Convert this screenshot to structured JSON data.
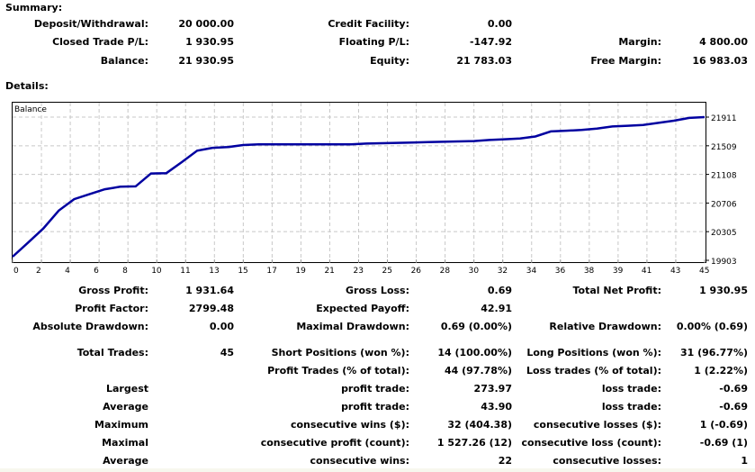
{
  "summary": {
    "title": "Summary:",
    "rows": [
      [
        {
          "label": "Deposit/Withdrawal:",
          "value": "20 000.00"
        },
        {
          "label": "Credit Facility:",
          "value": "0.00"
        },
        {
          "label": "",
          "value": ""
        }
      ],
      [
        {
          "label": "Closed Trade P/L:",
          "value": "1 930.95"
        },
        {
          "label": "Floating P/L:",
          "value": "-147.92"
        },
        {
          "label": "Margin:",
          "value": "4 800.00"
        }
      ],
      [
        {
          "label": "Balance:",
          "value": "21 930.95"
        },
        {
          "label": "Equity:",
          "value": "21 783.03"
        },
        {
          "label": "Free Margin:",
          "value": "16 983.03"
        }
      ]
    ]
  },
  "details": {
    "title": "Details:",
    "rows": [
      [
        {
          "label": "Gross Profit:",
          "value": "1 931.64"
        },
        {
          "label": "Gross Loss:",
          "value": "0.69"
        },
        {
          "label": "Total Net Profit:",
          "value": "1 930.95"
        }
      ],
      [
        {
          "label": "Profit Factor:",
          "value": "2799.48"
        },
        {
          "label": "Expected Payoff:",
          "value": "42.91"
        },
        {
          "label": "",
          "value": ""
        }
      ],
      [
        {
          "label": "Absolute Drawdown:",
          "value": "0.00"
        },
        {
          "label": "Maximal Drawdown:",
          "value": "0.69 (0.00%)"
        },
        {
          "label": "Relative Drawdown:",
          "value": "0.00% (0.69)"
        }
      ],
      [
        {
          "label": "Total Trades:",
          "value": "45"
        },
        {
          "label": "Short Positions (won %):",
          "value": "14 (100.00%)"
        },
        {
          "label": "Long Positions (won %):",
          "value": "31 (96.77%)"
        }
      ],
      [
        {
          "label": "",
          "value": ""
        },
        {
          "label": "Profit Trades (% of total):",
          "value": "44 (97.78%)"
        },
        {
          "label": "Loss trades (% of total):",
          "value": "1 (2.22%)"
        }
      ],
      [
        {
          "label": "Largest",
          "value": ""
        },
        {
          "label": "profit trade:",
          "value": "273.97"
        },
        {
          "label": "loss trade:",
          "value": "-0.69"
        }
      ],
      [
        {
          "label": "Average",
          "value": ""
        },
        {
          "label": "profit trade:",
          "value": "43.90"
        },
        {
          "label": "loss trade:",
          "value": "-0.69"
        }
      ],
      [
        {
          "label": "Maximum",
          "value": ""
        },
        {
          "label": "consecutive wins ($):",
          "value": "32 (404.38)"
        },
        {
          "label": "consecutive losses ($):",
          "value": "1 (-0.69)"
        }
      ],
      [
        {
          "label": "Maximal",
          "value": ""
        },
        {
          "label": "consecutive profit (count):",
          "value": "1 527.26 (12)"
        },
        {
          "label": "consecutive loss (count):",
          "value": "-0.69 (1)"
        }
      ],
      [
        {
          "label": "Average",
          "value": ""
        },
        {
          "label": "consecutive wins:",
          "value": "22"
        },
        {
          "label": "consecutive losses:",
          "value": "1"
        }
      ]
    ]
  },
  "colors": {
    "line": "#0000a0",
    "grid": "#c8c8c8",
    "frame": "#000000"
  },
  "chart_data": {
    "type": "line",
    "title": "Balance",
    "xlabel": "",
    "ylabel": "",
    "x_tick_labels": [
      "0",
      "2",
      "4",
      "6",
      "8",
      "10",
      "11",
      "13",
      "15",
      "17",
      "19",
      "21",
      "23",
      "25",
      "26",
      "28",
      "30",
      "32",
      "34",
      "36",
      "38",
      "39",
      "41",
      "43",
      "45"
    ],
    "y_tick_labels": [
      "21911",
      "21509",
      "21108",
      "20706",
      "20305",
      "19903"
    ],
    "ylim": [
      19903,
      21911
    ],
    "xlim": [
      0,
      45
    ],
    "grid": true,
    "legend": "none",
    "series": [
      {
        "name": "Balance",
        "x": [
          0,
          1,
          2,
          3,
          4,
          5,
          6,
          7,
          8,
          9,
          10,
          11,
          12,
          13,
          14,
          15,
          16,
          17,
          18,
          19,
          20,
          21,
          22,
          23,
          24,
          25,
          26,
          27,
          28,
          29,
          30,
          31,
          32,
          33,
          34,
          35,
          36,
          37,
          38,
          39,
          40,
          41,
          42,
          43,
          44,
          45
        ],
        "values": [
          19953,
          20150,
          20350,
          20600,
          20760,
          20830,
          20900,
          20935,
          20940,
          21120,
          21125,
          21280,
          21440,
          21480,
          21490,
          21520,
          21530,
          21530,
          21530,
          21530,
          21530,
          21530,
          21530,
          21540,
          21545,
          21550,
          21555,
          21560,
          21565,
          21570,
          21575,
          21590,
          21600,
          21610,
          21640,
          21710,
          21720,
          21730,
          21750,
          21780,
          21790,
          21800,
          21830,
          21860,
          21900,
          21911
        ]
      }
    ]
  }
}
